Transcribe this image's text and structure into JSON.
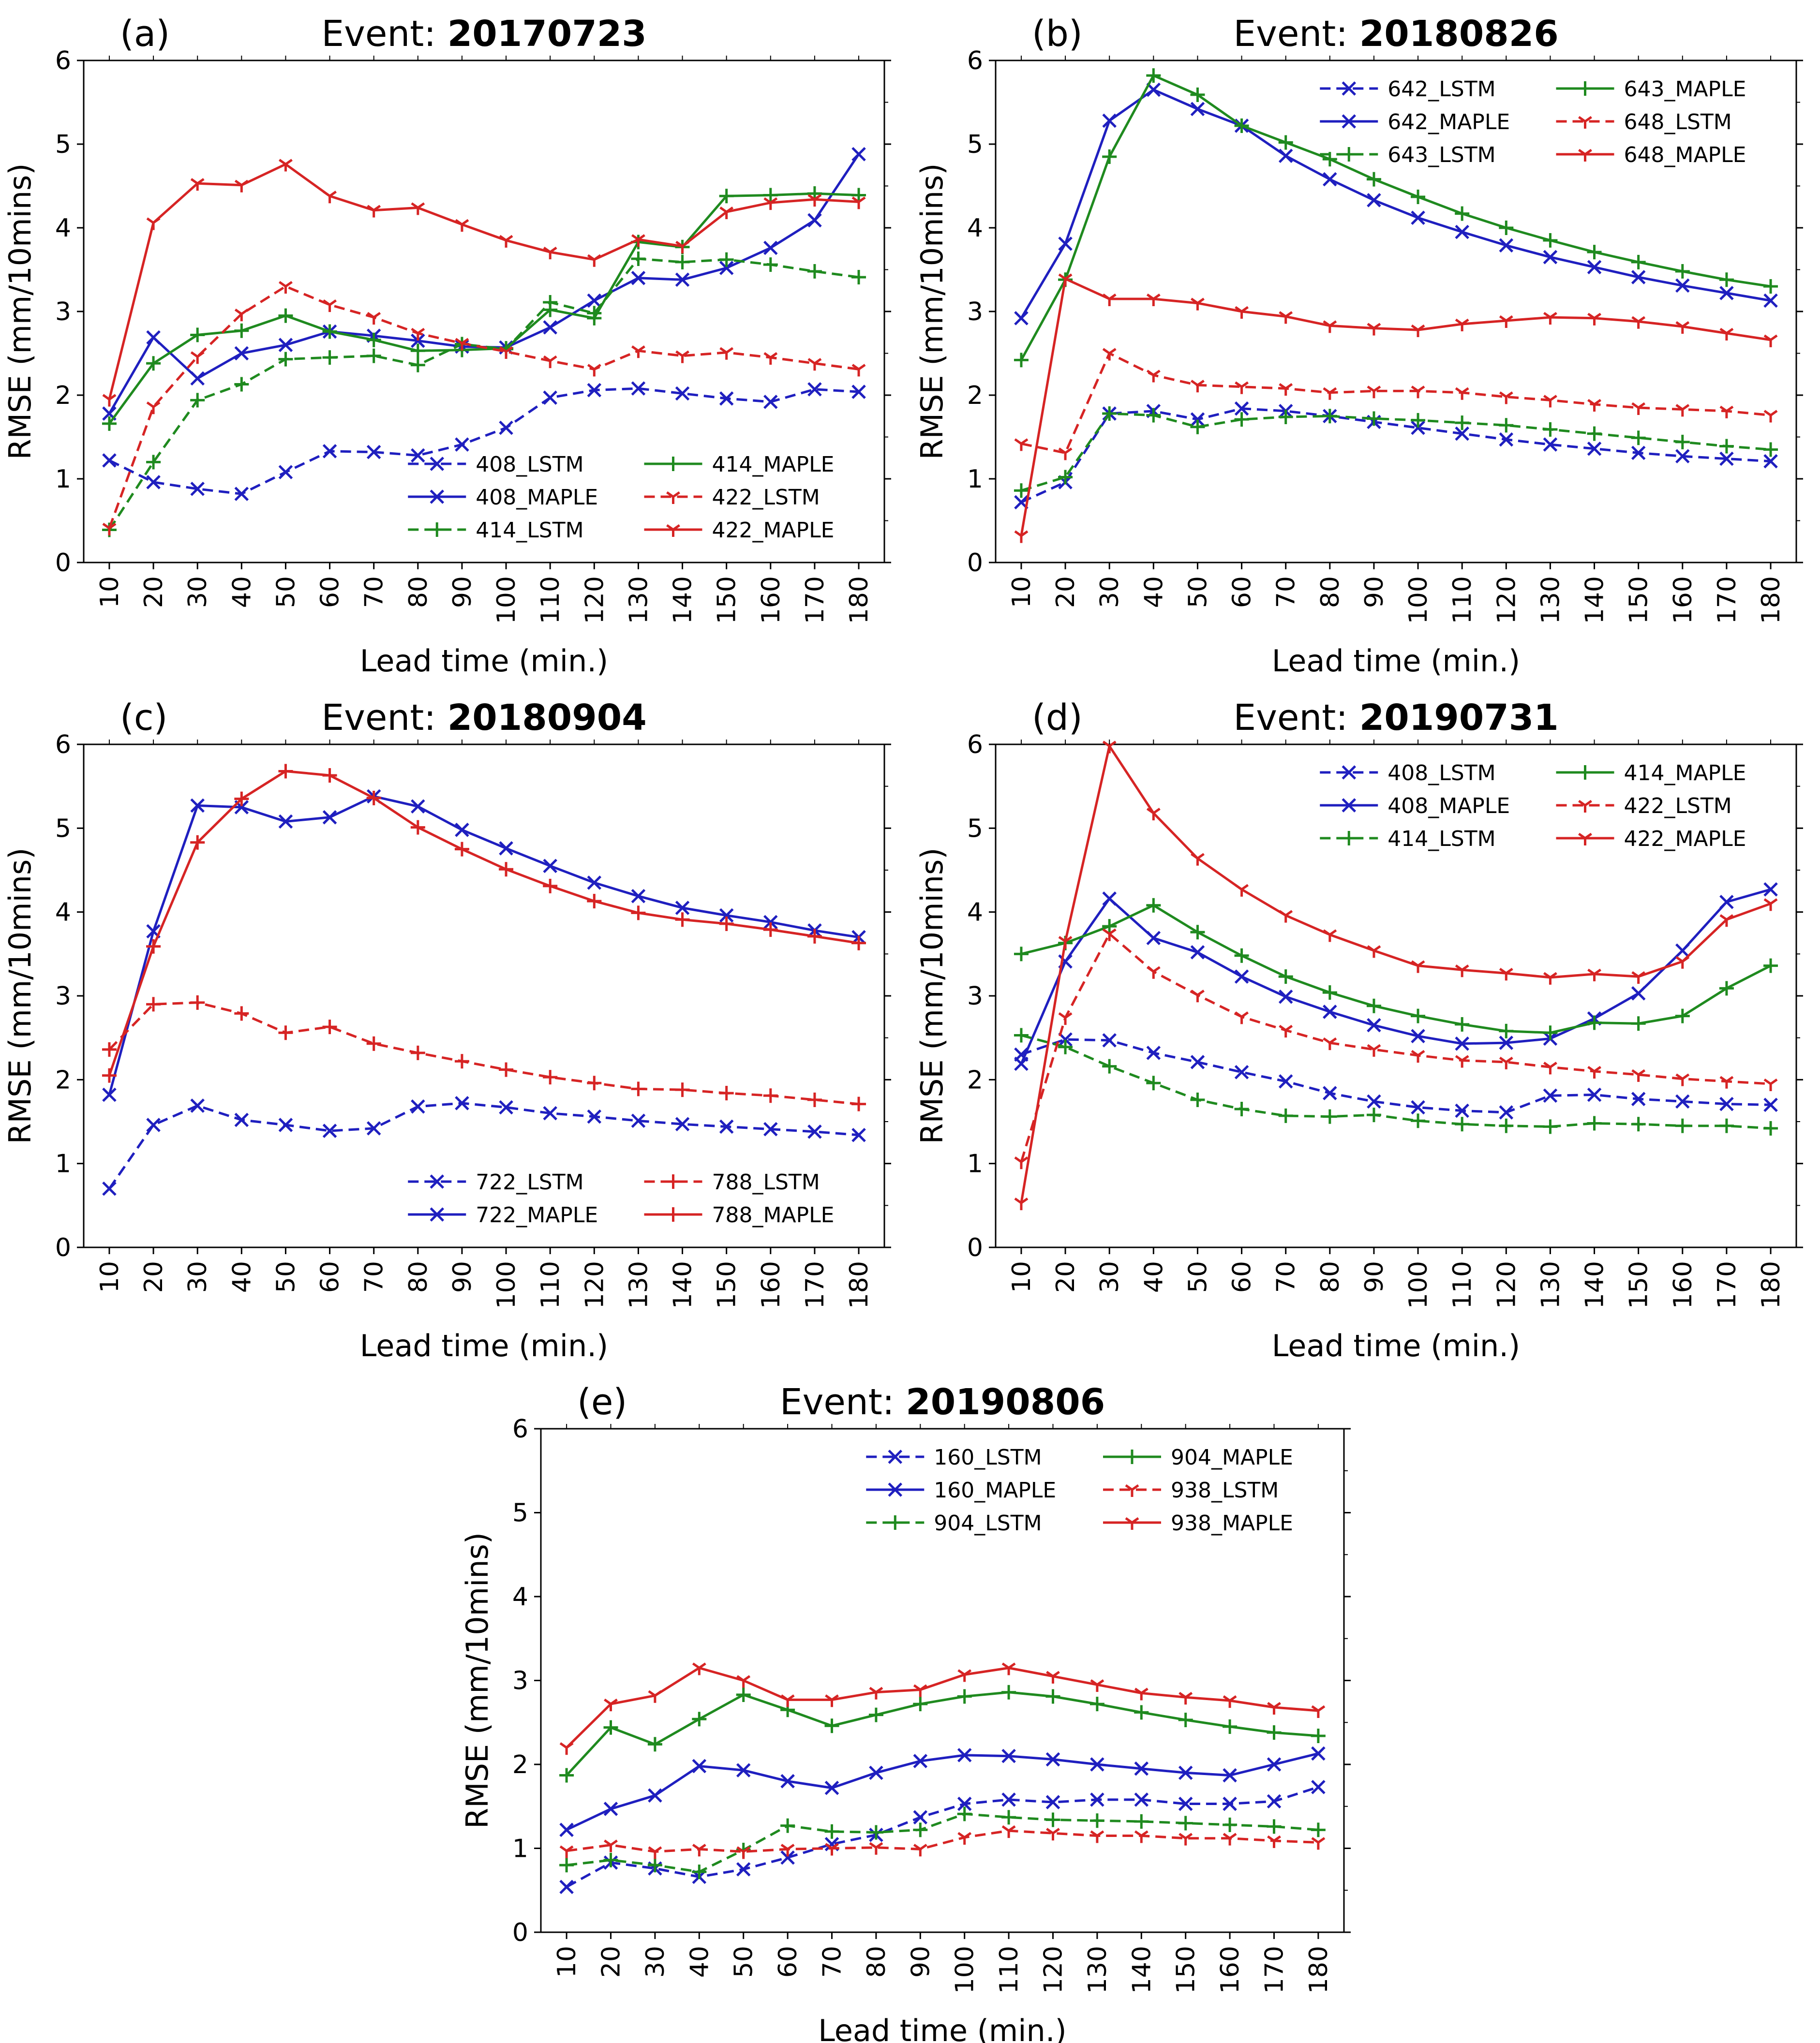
{
  "figure": {
    "y_axis_label": "RMSE (mm/10mins)",
    "x_axis_label": "Lead time (min.)",
    "title_prefix": "Event: "
  },
  "colors": {
    "blue": "#1f1fbf",
    "green": "#1f8a1f",
    "red": "#d62424"
  },
  "chart_data": [
    {
      "type": "line",
      "panel": "(a)",
      "event": "20170723",
      "xlabel": "Lead time (min.)",
      "ylabel": "RMSE (mm/10mins)",
      "ylim": [
        0,
        6
      ],
      "yticks": [
        0,
        1,
        2,
        3,
        4,
        5,
        6
      ],
      "x": [
        10,
        20,
        30,
        40,
        50,
        60,
        70,
        80,
        90,
        100,
        110,
        120,
        130,
        140,
        150,
        160,
        170,
        180
      ],
      "legend_position": "lower-right",
      "series": [
        {
          "name": "408_LSTM",
          "color": "blue",
          "style": "dashed",
          "marker": "x",
          "values": [
            1.22,
            0.96,
            0.88,
            0.82,
            1.08,
            1.33,
            1.32,
            1.28,
            1.41,
            1.61,
            1.97,
            2.06,
            2.08,
            2.02,
            1.96,
            1.92,
            2.07,
            2.04
          ]
        },
        {
          "name": "408_MAPLE",
          "color": "blue",
          "style": "solid",
          "marker": "x",
          "values": [
            1.78,
            2.69,
            2.2,
            2.5,
            2.6,
            2.76,
            2.71,
            2.65,
            2.58,
            2.57,
            2.81,
            3.13,
            3.4,
            3.38,
            3.52,
            3.76,
            4.09,
            4.88
          ]
        },
        {
          "name": "414_LSTM",
          "color": "green",
          "style": "dashed",
          "marker": "+",
          "values": [
            0.39,
            1.2,
            1.94,
            2.13,
            2.43,
            2.45,
            2.47,
            2.36,
            2.61,
            2.55,
            3.11,
            2.98,
            3.63,
            3.59,
            3.62,
            3.56,
            3.48,
            3.41
          ]
        },
        {
          "name": "414_MAPLE",
          "color": "green",
          "style": "solid",
          "marker": "+",
          "values": [
            1.66,
            2.38,
            2.72,
            2.77,
            2.95,
            2.76,
            2.66,
            2.53,
            2.54,
            2.56,
            3.02,
            2.92,
            3.83,
            3.77,
            4.38,
            4.39,
            4.41,
            4.39
          ]
        },
        {
          "name": "422_LSTM",
          "color": "red",
          "style": "dashed",
          "marker": "tri",
          "values": [
            0.41,
            1.86,
            2.46,
            2.97,
            3.3,
            3.08,
            2.93,
            2.74,
            2.62,
            2.52,
            2.41,
            2.31,
            2.53,
            2.47,
            2.51,
            2.45,
            2.38,
            2.31
          ]
        },
        {
          "name": "422_MAPLE",
          "color": "red",
          "style": "solid",
          "marker": "tri",
          "values": [
            1.95,
            4.06,
            4.53,
            4.51,
            4.76,
            4.38,
            4.21,
            4.24,
            4.04,
            3.85,
            3.71,
            3.62,
            3.86,
            3.78,
            4.19,
            4.3,
            4.34,
            4.31
          ]
        }
      ]
    },
    {
      "type": "line",
      "panel": "(b)",
      "event": "20180826",
      "xlabel": "Lead time (min.)",
      "ylabel": "RMSE (mm/10mins)",
      "ylim": [
        0,
        6
      ],
      "yticks": [
        0,
        1,
        2,
        3,
        4,
        5,
        6
      ],
      "x": [
        10,
        20,
        30,
        40,
        50,
        60,
        70,
        80,
        90,
        100,
        110,
        120,
        130,
        140,
        150,
        160,
        170,
        180
      ],
      "legend_position": "upper-right",
      "series": [
        {
          "name": "642_LSTM",
          "color": "blue",
          "style": "dashed",
          "marker": "x",
          "values": [
            0.72,
            0.96,
            1.78,
            1.81,
            1.71,
            1.84,
            1.81,
            1.75,
            1.68,
            1.61,
            1.54,
            1.47,
            1.41,
            1.36,
            1.31,
            1.27,
            1.24,
            1.21
          ]
        },
        {
          "name": "642_MAPLE",
          "color": "blue",
          "style": "solid",
          "marker": "x",
          "values": [
            2.92,
            3.81,
            5.28,
            5.65,
            5.42,
            5.22,
            4.86,
            4.58,
            4.33,
            4.12,
            3.95,
            3.79,
            3.65,
            3.53,
            3.41,
            3.31,
            3.22,
            3.13
          ]
        },
        {
          "name": "643_LSTM",
          "color": "green",
          "style": "dashed",
          "marker": "+",
          "values": [
            0.86,
            1.02,
            1.78,
            1.76,
            1.62,
            1.71,
            1.74,
            1.75,
            1.72,
            1.7,
            1.67,
            1.64,
            1.59,
            1.54,
            1.49,
            1.44,
            1.39,
            1.35
          ]
        },
        {
          "name": "643_MAPLE",
          "color": "green",
          "style": "solid",
          "marker": "+",
          "values": [
            2.42,
            3.38,
            4.85,
            5.82,
            5.59,
            5.22,
            5.02,
            4.82,
            4.58,
            4.37,
            4.17,
            4.0,
            3.85,
            3.71,
            3.59,
            3.48,
            3.38,
            3.3
          ]
        },
        {
          "name": "648_LSTM",
          "color": "red",
          "style": "dashed",
          "marker": "tri",
          "values": [
            1.42,
            1.31,
            2.5,
            2.24,
            2.12,
            2.1,
            2.08,
            2.03,
            2.05,
            2.05,
            2.03,
            1.98,
            1.94,
            1.89,
            1.85,
            1.83,
            1.81,
            1.76
          ]
        },
        {
          "name": "648_MAPLE",
          "color": "red",
          "style": "solid",
          "marker": "tri",
          "values": [
            0.32,
            3.39,
            3.15,
            3.15,
            3.1,
            3.0,
            2.94,
            2.83,
            2.8,
            2.78,
            2.85,
            2.89,
            2.93,
            2.92,
            2.88,
            2.82,
            2.74,
            2.66
          ]
        }
      ]
    },
    {
      "type": "line",
      "panel": "(c)",
      "event": "20180904",
      "xlabel": "Lead time (min.)",
      "ylabel": "RMSE (mm/10mins)",
      "ylim": [
        0,
        6
      ],
      "yticks": [
        0,
        1,
        2,
        3,
        4,
        5,
        6
      ],
      "x": [
        10,
        20,
        30,
        40,
        50,
        60,
        70,
        80,
        90,
        100,
        110,
        120,
        130,
        140,
        150,
        160,
        170,
        180
      ],
      "legend_position": "lower-right",
      "series": [
        {
          "name": "722_LSTM",
          "color": "blue",
          "style": "dashed",
          "marker": "x",
          "values": [
            0.7,
            1.46,
            1.69,
            1.52,
            1.46,
            1.39,
            1.42,
            1.68,
            1.72,
            1.67,
            1.6,
            1.56,
            1.51,
            1.47,
            1.44,
            1.41,
            1.38,
            1.34
          ]
        },
        {
          "name": "722_MAPLE",
          "color": "blue",
          "style": "solid",
          "marker": "x",
          "values": [
            1.82,
            3.77,
            5.27,
            5.25,
            5.08,
            5.13,
            5.38,
            5.26,
            4.98,
            4.76,
            4.55,
            4.35,
            4.19,
            4.05,
            3.96,
            3.88,
            3.78,
            3.7
          ]
        },
        {
          "name": "788_LSTM",
          "color": "red",
          "style": "dashed",
          "marker": "+",
          "values": [
            2.36,
            2.9,
            2.92,
            2.79,
            2.56,
            2.63,
            2.43,
            2.32,
            2.22,
            2.12,
            2.03,
            1.96,
            1.89,
            1.88,
            1.84,
            1.81,
            1.76,
            1.71
          ]
        },
        {
          "name": "788_MAPLE",
          "color": "red",
          "style": "solid",
          "marker": "+",
          "values": [
            2.05,
            3.59,
            4.83,
            5.35,
            5.68,
            5.63,
            5.36,
            5.01,
            4.75,
            4.51,
            4.31,
            4.13,
            3.99,
            3.91,
            3.86,
            3.79,
            3.71,
            3.63
          ]
        }
      ]
    },
    {
      "type": "line",
      "panel": "(d)",
      "event": "20190731",
      "xlabel": "Lead time (min.)",
      "ylabel": "RMSE (mm/10mins)",
      "ylim": [
        0,
        6
      ],
      "yticks": [
        0,
        1,
        2,
        3,
        4,
        5,
        6
      ],
      "x": [
        10,
        20,
        30,
        40,
        50,
        60,
        70,
        80,
        90,
        100,
        110,
        120,
        130,
        140,
        150,
        160,
        170,
        180
      ],
      "legend_position": "upper-right",
      "series": [
        {
          "name": "408_LSTM",
          "color": "blue",
          "style": "dashed",
          "marker": "x",
          "values": [
            2.3,
            2.48,
            2.47,
            2.32,
            2.21,
            2.09,
            1.98,
            1.84,
            1.74,
            1.67,
            1.63,
            1.61,
            1.81,
            1.82,
            1.77,
            1.74,
            1.71,
            1.7
          ]
        },
        {
          "name": "408_MAPLE",
          "color": "blue",
          "style": "solid",
          "marker": "x",
          "values": [
            2.19,
            3.41,
            4.16,
            3.69,
            3.52,
            3.23,
            2.99,
            2.81,
            2.65,
            2.52,
            2.43,
            2.44,
            2.49,
            2.73,
            3.03,
            3.54,
            4.12,
            4.27
          ]
        },
        {
          "name": "414_LSTM",
          "color": "green",
          "style": "dashed",
          "marker": "+",
          "values": [
            2.53,
            2.39,
            2.16,
            1.96,
            1.76,
            1.65,
            1.57,
            1.56,
            1.58,
            1.51,
            1.47,
            1.45,
            1.44,
            1.48,
            1.47,
            1.45,
            1.45,
            1.42
          ]
        },
        {
          "name": "414_MAPLE",
          "color": "green",
          "style": "solid",
          "marker": "+",
          "values": [
            3.5,
            3.63,
            3.83,
            4.08,
            3.76,
            3.48,
            3.23,
            3.04,
            2.88,
            2.76,
            2.66,
            2.58,
            2.56,
            2.68,
            2.67,
            2.76,
            3.09,
            3.36
          ]
        },
        {
          "name": "422_LSTM",
          "color": "red",
          "style": "dashed",
          "marker": "tri",
          "values": [
            1.02,
            2.74,
            3.74,
            3.29,
            3.01,
            2.75,
            2.59,
            2.44,
            2.36,
            2.29,
            2.23,
            2.21,
            2.15,
            2.1,
            2.06,
            2.01,
            1.98,
            1.95
          ]
        },
        {
          "name": "422_MAPLE",
          "color": "red",
          "style": "solid",
          "marker": "tri",
          "values": [
            0.53,
            3.65,
            5.98,
            5.18,
            4.64,
            4.27,
            3.96,
            3.73,
            3.54,
            3.36,
            3.31,
            3.27,
            3.22,
            3.26,
            3.23,
            3.41,
            3.91,
            4.1
          ]
        }
      ]
    },
    {
      "type": "line",
      "panel": "(e)",
      "event": "20190806",
      "xlabel": "Lead time (min.)",
      "ylabel": "RMSE (mm/10mins)",
      "ylim": [
        0,
        6
      ],
      "yticks": [
        0,
        1,
        2,
        3,
        4,
        5,
        6
      ],
      "x": [
        10,
        20,
        30,
        40,
        50,
        60,
        70,
        80,
        90,
        100,
        110,
        120,
        130,
        140,
        150,
        160,
        170,
        180
      ],
      "legend_position": "upper-right",
      "series": [
        {
          "name": "160_LSTM",
          "color": "blue",
          "style": "dashed",
          "marker": "x",
          "values": [
            0.54,
            0.83,
            0.76,
            0.66,
            0.75,
            0.89,
            1.05,
            1.16,
            1.37,
            1.53,
            1.58,
            1.55,
            1.58,
            1.58,
            1.53,
            1.53,
            1.56,
            1.73
          ]
        },
        {
          "name": "160_MAPLE",
          "color": "blue",
          "style": "solid",
          "marker": "x",
          "values": [
            1.22,
            1.47,
            1.63,
            1.98,
            1.93,
            1.8,
            1.72,
            1.9,
            2.04,
            2.11,
            2.1,
            2.06,
            2.0,
            1.95,
            1.9,
            1.87,
            2.0,
            2.13
          ]
        },
        {
          "name": "904_LSTM",
          "color": "green",
          "style": "dashed",
          "marker": "+",
          "values": [
            0.8,
            0.86,
            0.8,
            0.72,
            0.98,
            1.27,
            1.2,
            1.19,
            1.22,
            1.41,
            1.37,
            1.34,
            1.33,
            1.32,
            1.3,
            1.28,
            1.26,
            1.22
          ]
        },
        {
          "name": "904_MAPLE",
          "color": "green",
          "style": "solid",
          "marker": "+",
          "values": [
            1.87,
            2.44,
            2.24,
            2.54,
            2.83,
            2.65,
            2.46,
            2.59,
            2.72,
            2.81,
            2.86,
            2.81,
            2.72,
            2.62,
            2.53,
            2.45,
            2.38,
            2.34
          ]
        },
        {
          "name": "938_LSTM",
          "color": "red",
          "style": "dashed",
          "marker": "tri",
          "values": [
            0.97,
            1.04,
            0.96,
            0.99,
            0.96,
            0.99,
            1.0,
            1.01,
            0.99,
            1.13,
            1.21,
            1.18,
            1.15,
            1.15,
            1.12,
            1.12,
            1.09,
            1.07
          ]
        },
        {
          "name": "938_MAPLE",
          "color": "red",
          "style": "solid",
          "marker": "tri",
          "values": [
            2.2,
            2.72,
            2.82,
            3.15,
            3.0,
            2.77,
            2.77,
            2.86,
            2.89,
            3.07,
            3.15,
            3.05,
            2.95,
            2.85,
            2.8,
            2.76,
            2.68,
            2.64
          ]
        }
      ]
    }
  ]
}
